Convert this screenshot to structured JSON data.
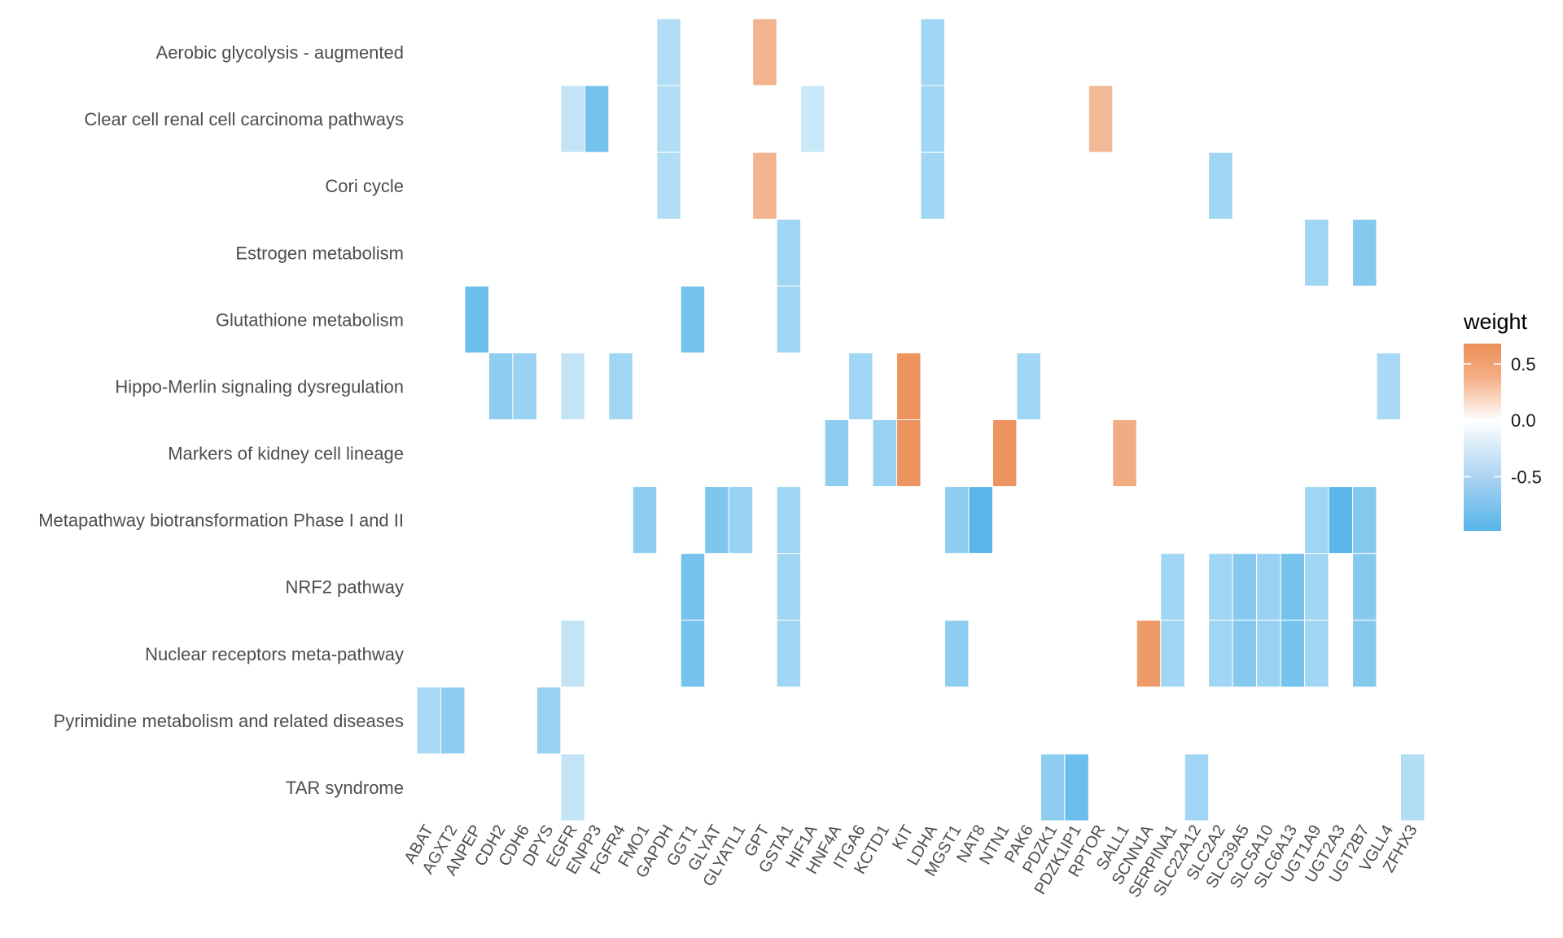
{
  "chart_data": {
    "type": "heatmap",
    "title": "",
    "xlabel": "",
    "ylabel": "",
    "x": [
      "ABAT",
      "AGXT2",
      "ANPEP",
      "CDH2",
      "CDH6",
      "DPYS",
      "EGFR",
      "ENPP3",
      "FGFR4",
      "FMO1",
      "GAPDH",
      "GGT1",
      "GLYAT",
      "GLYATL1",
      "GPT",
      "GSTA1",
      "HIF1A",
      "HNF4A",
      "ITGA6",
      "KCTD1",
      "KIT",
      "LDHA",
      "MGST1",
      "NAT8",
      "NTN1",
      "PAK6",
      "PDZK1",
      "PDZK1IP1",
      "RPTOR",
      "SALL1",
      "SCNN1A",
      "SERPINA1",
      "SLC22A12",
      "SLC2A2",
      "SLC39A5",
      "SLC5A10",
      "SLC6A13",
      "UGT1A9",
      "UGT2A3",
      "UGT2B7",
      "VGLL4",
      "ZFHX3"
    ],
    "y": [
      "Aerobic glycolysis - augmented",
      "Clear cell renal cell carcinoma pathways",
      "Cori cycle",
      "Estrogen metabolism",
      "Glutathione metabolism",
      "Hippo-Merlin signaling dysregulation",
      "Markers of kidney cell lineage",
      "Metapathway biotransformation Phase I and II",
      "NRF2 pathway",
      "Nuclear receptors meta-pathway",
      "Pyrimidine metabolism and related diseases",
      "TAR syndrome"
    ],
    "cells": [
      {
        "row": "Aerobic glycolysis - augmented",
        "col": "GAPDH",
        "value": -0.45
      },
      {
        "row": "Aerobic glycolysis - augmented",
        "col": "GPT",
        "value": 0.45
      },
      {
        "row": "Aerobic glycolysis - augmented",
        "col": "LDHA",
        "value": -0.55
      },
      {
        "row": "Clear cell renal cell carcinoma pathways",
        "col": "EGFR",
        "value": -0.35
      },
      {
        "row": "Clear cell renal cell carcinoma pathways",
        "col": "ENPP3",
        "value": -0.8
      },
      {
        "row": "Clear cell renal cell carcinoma pathways",
        "col": "GAPDH",
        "value": -0.45
      },
      {
        "row": "Clear cell renal cell carcinoma pathways",
        "col": "HIF1A",
        "value": -0.3
      },
      {
        "row": "Clear cell renal cell carcinoma pathways",
        "col": "LDHA",
        "value": -0.55
      },
      {
        "row": "Clear cell renal cell carcinoma pathways",
        "col": "RPTOR",
        "value": 0.42
      },
      {
        "row": "Cori cycle",
        "col": "GAPDH",
        "value": -0.45
      },
      {
        "row": "Cori cycle",
        "col": "GPT",
        "value": 0.45
      },
      {
        "row": "Cori cycle",
        "col": "LDHA",
        "value": -0.55
      },
      {
        "row": "Cori cycle",
        "col": "SLC2A2",
        "value": -0.55
      },
      {
        "row": "Estrogen metabolism",
        "col": "GSTA1",
        "value": -0.55
      },
      {
        "row": "Estrogen metabolism",
        "col": "UGT1A9",
        "value": -0.55
      },
      {
        "row": "Estrogen metabolism",
        "col": "UGT2B7",
        "value": -0.7
      },
      {
        "row": "Glutathione metabolism",
        "col": "ANPEP",
        "value": -0.85
      },
      {
        "row": "Glutathione metabolism",
        "col": "GGT1",
        "value": -0.8
      },
      {
        "row": "Glutathione metabolism",
        "col": "GSTA1",
        "value": -0.55
      },
      {
        "row": "Hippo-Merlin signaling dysregulation",
        "col": "CDH2",
        "value": -0.65
      },
      {
        "row": "Hippo-Merlin signaling dysregulation",
        "col": "CDH6",
        "value": -0.6
      },
      {
        "row": "Hippo-Merlin signaling dysregulation",
        "col": "EGFR",
        "value": -0.35
      },
      {
        "row": "Hippo-Merlin signaling dysregulation",
        "col": "FGFR4",
        "value": -0.55
      },
      {
        "row": "Hippo-Merlin signaling dysregulation",
        "col": "ITGA6",
        "value": -0.55
      },
      {
        "row": "Hippo-Merlin signaling dysregulation",
        "col": "KIT",
        "value": 0.65
      },
      {
        "row": "Hippo-Merlin signaling dysregulation",
        "col": "PAK6",
        "value": -0.55
      },
      {
        "row": "Hippo-Merlin signaling dysregulation",
        "col": "VGLL4",
        "value": -0.5
      },
      {
        "row": "Markers of kidney cell lineage",
        "col": "HNF4A",
        "value": -0.65
      },
      {
        "row": "Markers of kidney cell lineage",
        "col": "KCTD1",
        "value": -0.6
      },
      {
        "row": "Markers of kidney cell lineage",
        "col": "KIT",
        "value": 0.65
      },
      {
        "row": "Markers of kidney cell lineage",
        "col": "NTN1",
        "value": 0.65
      },
      {
        "row": "Markers of kidney cell lineage",
        "col": "SALL1",
        "value": 0.5
      },
      {
        "row": "Metapathway biotransformation Phase I and II",
        "col": "FMO1",
        "value": -0.65
      },
      {
        "row": "Metapathway biotransformation Phase I and II",
        "col": "GLYAT",
        "value": -0.75
      },
      {
        "row": "Metapathway biotransformation Phase I and II",
        "col": "GLYATL1",
        "value": -0.6
      },
      {
        "row": "Metapathway biotransformation Phase I and II",
        "col": "GSTA1",
        "value": -0.55
      },
      {
        "row": "Metapathway biotransformation Phase I and II",
        "col": "MGST1",
        "value": -0.65
      },
      {
        "row": "Metapathway biotransformation Phase I and II",
        "col": "NAT8",
        "value": -0.95
      },
      {
        "row": "Metapathway biotransformation Phase I and II",
        "col": "UGT1A9",
        "value": -0.55
      },
      {
        "row": "Metapathway biotransformation Phase I and II",
        "col": "UGT2A3",
        "value": -0.95
      },
      {
        "row": "Metapathway biotransformation Phase I and II",
        "col": "UGT2B7",
        "value": -0.7
      },
      {
        "row": "NRF2 pathway",
        "col": "GGT1",
        "value": -0.8
      },
      {
        "row": "NRF2 pathway",
        "col": "GSTA1",
        "value": -0.55
      },
      {
        "row": "NRF2 pathway",
        "col": "SERPINA1",
        "value": -0.55
      },
      {
        "row": "NRF2 pathway",
        "col": "SLC2A2",
        "value": -0.55
      },
      {
        "row": "NRF2 pathway",
        "col": "SLC39A5",
        "value": -0.7
      },
      {
        "row": "NRF2 pathway",
        "col": "SLC5A10",
        "value": -0.6
      },
      {
        "row": "NRF2 pathway",
        "col": "SLC6A13",
        "value": -0.8
      },
      {
        "row": "NRF2 pathway",
        "col": "UGT1A9",
        "value": -0.55
      },
      {
        "row": "NRF2 pathway",
        "col": "UGT2B7",
        "value": -0.7
      },
      {
        "row": "Nuclear receptors meta-pathway",
        "col": "EGFR",
        "value": -0.35
      },
      {
        "row": "Nuclear receptors meta-pathway",
        "col": "GGT1",
        "value": -0.8
      },
      {
        "row": "Nuclear receptors meta-pathway",
        "col": "GSTA1",
        "value": -0.55
      },
      {
        "row": "Nuclear receptors meta-pathway",
        "col": "MGST1",
        "value": -0.65
      },
      {
        "row": "Nuclear receptors meta-pathway",
        "col": "SCNN1A",
        "value": 0.6
      },
      {
        "row": "Nuclear receptors meta-pathway",
        "col": "SERPINA1",
        "value": -0.55
      },
      {
        "row": "Nuclear receptors meta-pathway",
        "col": "SLC2A2",
        "value": -0.55
      },
      {
        "row": "Nuclear receptors meta-pathway",
        "col": "SLC39A5",
        "value": -0.7
      },
      {
        "row": "Nuclear receptors meta-pathway",
        "col": "SLC5A10",
        "value": -0.6
      },
      {
        "row": "Nuclear receptors meta-pathway",
        "col": "SLC6A13",
        "value": -0.8
      },
      {
        "row": "Nuclear receptors meta-pathway",
        "col": "UGT1A9",
        "value": -0.55
      },
      {
        "row": "Nuclear receptors meta-pathway",
        "col": "UGT2B7",
        "value": -0.7
      },
      {
        "row": "Pyrimidine metabolism and related diseases",
        "col": "ABAT",
        "value": -0.5
      },
      {
        "row": "Pyrimidine metabolism and related diseases",
        "col": "AGXT2",
        "value": -0.65
      },
      {
        "row": "Pyrimidine metabolism and related diseases",
        "col": "DPYS",
        "value": -0.6
      },
      {
        "row": "TAR syndrome",
        "col": "EGFR",
        "value": -0.35
      },
      {
        "row": "TAR syndrome",
        "col": "PDZK1",
        "value": -0.65
      },
      {
        "row": "TAR syndrome",
        "col": "PDZK1IP1",
        "value": -0.85
      },
      {
        "row": "TAR syndrome",
        "col": "SLC22A12",
        "value": -0.55
      },
      {
        "row": "TAR syndrome",
        "col": "ZFHX3",
        "value": -0.45
      }
    ],
    "legend": {
      "title": "weight",
      "ticks": [
        0.5,
        0.0,
        -0.5
      ],
      "tick_labels": [
        "0.5",
        "0.0",
        "-0.5"
      ],
      "range": [
        -0.98,
        0.68
      ],
      "placement": "right"
    },
    "colors": {
      "low": "#56B4E9",
      "mid": "#FFFFFF",
      "high": "#E69F00",
      "high_rendered": "#EC8E55"
    },
    "grid": false
  }
}
